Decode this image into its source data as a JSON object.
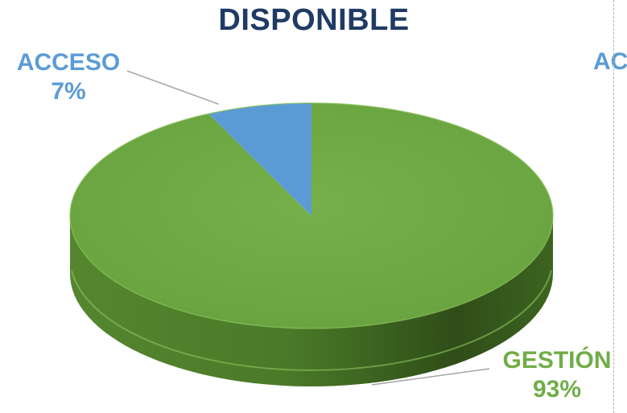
{
  "chart_data": {
    "type": "pie",
    "title": "DISPONIBLE",
    "categories": [
      "ACCESO",
      "GESTIÓN"
    ],
    "values": [
      7,
      93
    ],
    "value_format": "percent",
    "labels": [
      "7%",
      "93%"
    ],
    "colors": {
      "ACCESO": "#5b9bd5",
      "GESTIÓN": "#70ad47",
      "side_shadow": "#3b5e22",
      "title": "#1f3a64",
      "acceso_label": "#5b9bd5",
      "gestion_label": "#70ad47"
    },
    "style": "3d-pie",
    "legend": "none"
  },
  "cut_off_label": "AC"
}
